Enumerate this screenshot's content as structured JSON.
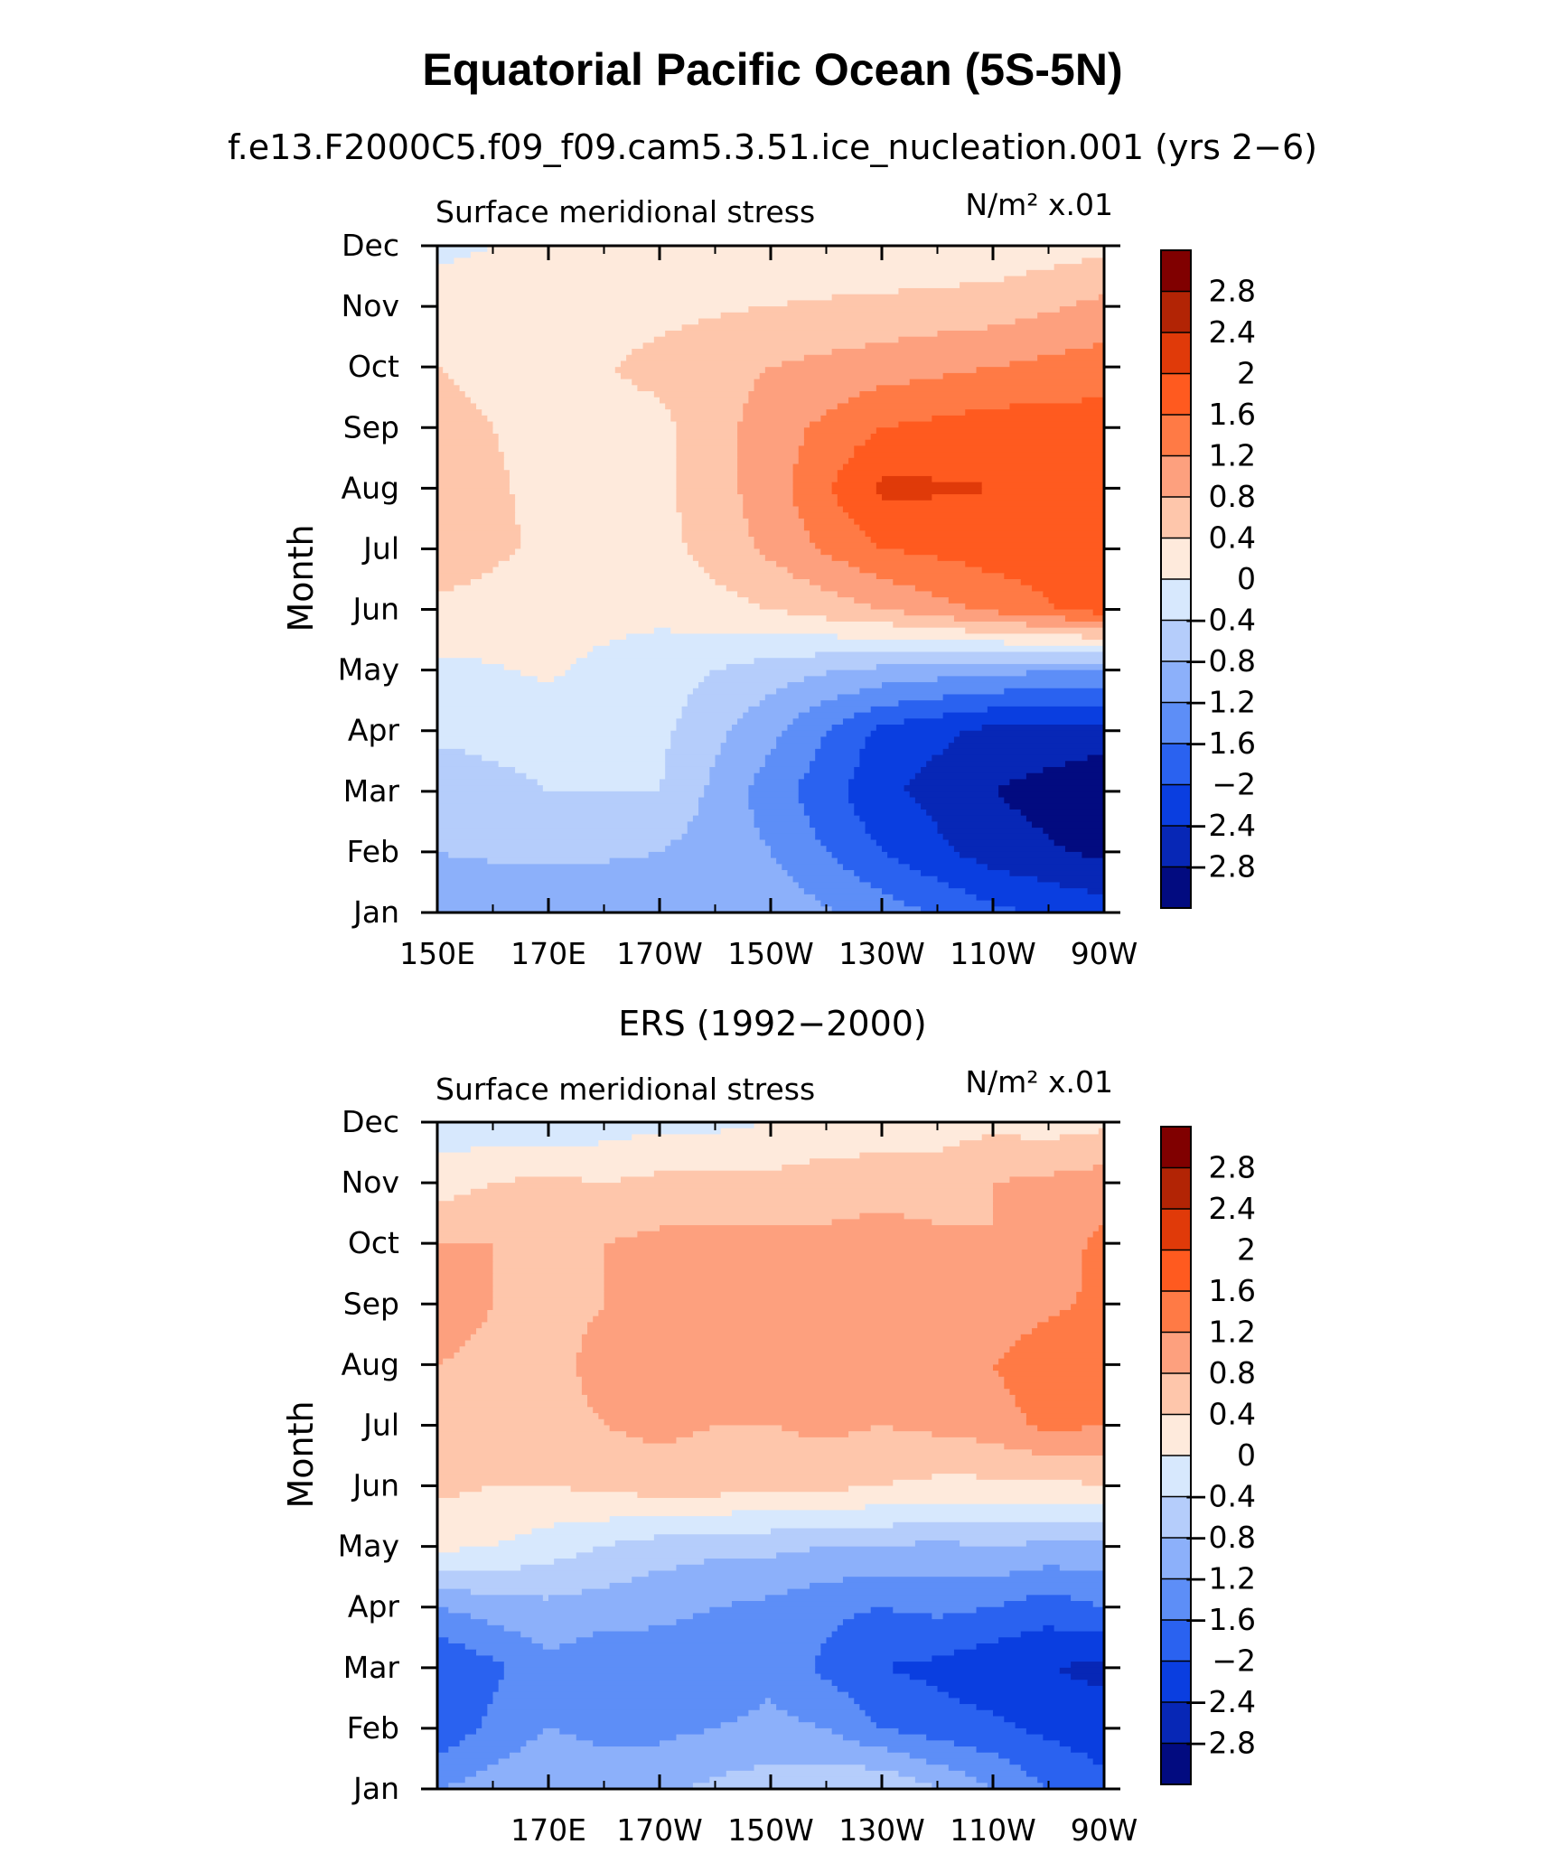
{
  "title": "Equatorial Pacific Ocean (5S-5N)",
  "chart_data": [
    {
      "type": "heatmap",
      "subtitle": "f.e13.F2000C5.f09_f09.cam5.3.51.ice_nucleation.001 (yrs 2−6)",
      "left_label": "Surface meridional stress",
      "units_label": "N/m² x.01",
      "ylabel": "Month",
      "x_ticks": [
        "150E",
        "170E",
        "170W",
        "150W",
        "130W",
        "110W",
        "90W"
      ],
      "xlim": [
        150,
        270
      ],
      "y_ticks": [
        "Jan",
        "Feb",
        "Mar",
        "Apr",
        "May",
        "Jun",
        "Jul",
        "Aug",
        "Sep",
        "Oct",
        "Nov",
        "Dec"
      ],
      "colorbar_labels": [
        "2.8",
        "2.4",
        "2",
        "1.6",
        "1.2",
        "0.8",
        "0.4",
        "0",
        "−0.4",
        "−0.8",
        "−1.2",
        "−1.6",
        "−2",
        "−2.4",
        "−2.8"
      ],
      "x_grid": [
        150,
        170,
        190,
        210,
        230,
        250,
        270
      ],
      "values": [
        [
          -1.0,
          -1.1,
          -1.0,
          -0.9,
          -1.4,
          -1.9,
          -2.2
        ],
        [
          -0.8,
          -0.7,
          -0.8,
          -1.2,
          -2.0,
          -2.6,
          -2.9
        ],
        [
          -0.7,
          -0.4,
          -0.4,
          -1.4,
          -2.3,
          -2.8,
          -3.1
        ],
        [
          -0.3,
          -0.2,
          -0.3,
          -1.1,
          -2.1,
          -2.5,
          -2.6
        ],
        [
          -0.1,
          0.05,
          -0.2,
          -0.6,
          -0.9,
          -1.1,
          -1.2
        ],
        [
          0.3,
          0.1,
          0.1,
          0.4,
          0.8,
          1.3,
          1.8
        ],
        [
          0.7,
          0.3,
          0.25,
          0.9,
          1.6,
          1.8,
          1.9
        ],
        [
          0.6,
          0.3,
          0.3,
          1.0,
          2.1,
          2.0,
          1.9
        ],
        [
          0.5,
          0.3,
          0.3,
          1.0,
          1.6,
          1.8,
          1.8
        ],
        [
          0.4,
          0.25,
          0.5,
          0.8,
          1.0,
          1.2,
          1.4
        ],
        [
          0.2,
          0.2,
          0.3,
          0.4,
          0.5,
          0.6,
          0.9
        ],
        [
          -0.1,
          0.1,
          0.1,
          0.15,
          0.05,
          0.1,
          0.3
        ]
      ]
    },
    {
      "type": "heatmap",
      "subtitle": "ERS (1992−2000)",
      "left_label": "Surface meridional stress",
      "units_label": "N/m² x.01",
      "ylabel": "Month",
      "x_ticks": [
        "",
        "170E",
        "170W",
        "150W",
        "130W",
        "110W",
        "90W"
      ],
      "xlim": [
        150,
        270
      ],
      "y_ticks": [
        "Jan",
        "Feb",
        "Mar",
        "Apr",
        "May",
        "Jun",
        "Jul",
        "Aug",
        "Sep",
        "Oct",
        "Nov",
        "Dec"
      ],
      "colorbar_labels": [
        "2.8",
        "2.4",
        "2",
        "1.6",
        "1.2",
        "0.8",
        "0.4",
        "0",
        "−0.4",
        "−0.8",
        "−1.2",
        "−1.6",
        "−2",
        "−2.4",
        "−2.8"
      ],
      "x_grid": [
        150,
        160,
        170,
        180,
        190,
        200,
        210,
        220,
        230,
        240,
        250,
        260,
        270
      ],
      "values": [
        [
          -1.2,
          -1.0,
          -0.8,
          -1.0,
          -0.9,
          -0.7,
          -0.6,
          -0.5,
          -0.4,
          -0.8,
          -1.2,
          -1.6,
          -1.9
        ],
        [
          -1.9,
          -1.5,
          -1.2,
          -1.3,
          -1.3,
          -1.2,
          -1.1,
          -1.2,
          -1.6,
          -1.8,
          -1.9,
          -2.1,
          -2.2
        ],
        [
          -2.0,
          -1.7,
          -1.3,
          -1.5,
          -1.4,
          -1.5,
          -1.3,
          -1.7,
          -2.0,
          -2.1,
          -2.3,
          -2.4,
          -2.5
        ],
        [
          -1.2,
          -1.0,
          -0.9,
          -1.0,
          -1.1,
          -1.2,
          -1.3,
          -1.5,
          -1.6,
          -1.5,
          -1.6,
          -1.8,
          -1.6
        ],
        [
          0.1,
          0.0,
          -0.2,
          -0.4,
          -0.6,
          -0.7,
          -0.7,
          -0.8,
          -0.8,
          -0.9,
          -0.8,
          -0.9,
          -0.9
        ],
        [
          0.5,
          0.4,
          0.4,
          0.5,
          0.6,
          0.6,
          0.5,
          0.5,
          0.4,
          0.3,
          0.3,
          0.3,
          0.4
        ],
        [
          0.7,
          0.6,
          0.7,
          0.8,
          0.9,
          0.8,
          0.8,
          0.9,
          0.8,
          0.9,
          1.0,
          1.3,
          1.2
        ],
        [
          0.8,
          0.6,
          0.7,
          0.9,
          0.9,
          1.0,
          0.9,
          1.0,
          0.9,
          0.9,
          1.2,
          1.5,
          1.5
        ],
        [
          1.2,
          0.8,
          0.7,
          0.8,
          0.9,
          1.0,
          1.0,
          1.0,
          1.1,
          1.0,
          0.9,
          1.1,
          1.3
        ],
        [
          0.8,
          0.8,
          0.7,
          0.8,
          0.9,
          0.9,
          0.9,
          0.9,
          1.0,
          0.9,
          0.8,
          1.0,
          1.3
        ],
        [
          0.2,
          0.4,
          0.5,
          0.4,
          0.5,
          0.5,
          0.5,
          0.6,
          0.6,
          0.6,
          0.8,
          0.9,
          1.0
        ],
        [
          -0.2,
          -0.3,
          -0.4,
          -0.2,
          -0.1,
          -0.1,
          0.0,
          0.1,
          0.2,
          0.2,
          0.3,
          0.2,
          0.3
        ]
      ]
    }
  ],
  "colorbar_colors": [
    "#800000",
    "#b22405",
    "#e03a09",
    "#ff5a1f",
    "#ff7a45",
    "#fda07e",
    "#fec6ab",
    "#feeadc",
    "#d7e8fd",
    "#b5cdfb",
    "#8cb0fa",
    "#5d8ef7",
    "#2a62f0",
    "#0a3ee0",
    "#0727b6",
    "#020b80"
  ],
  "levels": [
    -2.8,
    -2.4,
    -2.0,
    -1.6,
    -1.2,
    -0.8,
    -0.4,
    0,
    0.4,
    0.8,
    1.2,
    1.6,
    2.0,
    2.4,
    2.8
  ]
}
